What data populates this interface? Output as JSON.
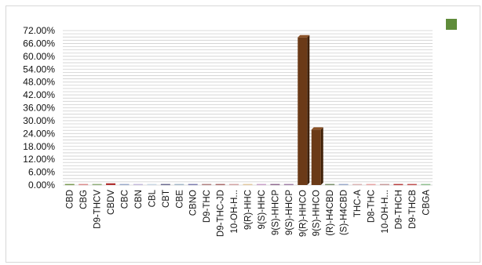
{
  "chart_data": {
    "type": "bar",
    "title": "",
    "xlabel": "",
    "ylabel": "",
    "ylim": [
      0,
      72
    ],
    "yticks": [
      "72.00%",
      "66.00%",
      "60.00%",
      "54.00%",
      "48.00%",
      "42.00%",
      "36.00%",
      "30.00%",
      "24.00%",
      "18.00%",
      "12.00%",
      "6.00%",
      "0.00%"
    ],
    "categories": [
      "CBD",
      "CBG",
      "D9-THCV",
      "CBDV",
      "CBC",
      "CBN",
      "CBL",
      "CBT",
      "CBE",
      "CBNO",
      "D9-THC",
      "D9-THC-JD",
      "10-OH-H...",
      "9(R)-HHC",
      "9(S)-HHC",
      "9(S)-HHCP",
      "9(S)-HHCP",
      "9(R)-HHCO",
      "9(S)-HHCO",
      "(R)-H4CBD",
      "(S)-H4CBD",
      "THC-A",
      "D8-THC",
      "10-OH-H...",
      "D9-THCH",
      "D9-THCB",
      "CBGA"
    ],
    "values": [
      0.5,
      0.5,
      0.5,
      0.8,
      0.5,
      0.5,
      0.5,
      0.5,
      0.5,
      0.5,
      0.5,
      0.5,
      0.5,
      0.5,
      0.5,
      0.5,
      0.5,
      68.8,
      25.8,
      0.5,
      0.5,
      0.5,
      0.5,
      0.5,
      0.5,
      0.5,
      0.5
    ],
    "bar_colors": [
      "#7a9a52",
      "#d98c8c",
      "#8fae7a",
      "#b03030",
      "#9aa9c9",
      "#c2b9d9",
      "#c9d6e3",
      "#6a6a8f",
      "#a3b5c7",
      "#7d7daf",
      "#b08080",
      "#a96b6b",
      "#d1a3a3",
      "#e0c7a0",
      "#c8a0c8",
      "#8f6a8f",
      "#9f7fa5",
      "#6b3a17",
      "#6b3a17",
      "#7a8f6a",
      "#9aa9c9",
      "#d9b3b3",
      "#e6a3a3",
      "#c79a9a",
      "#b84040",
      "#c05050",
      "#8fbf8f"
    ],
    "legend": {
      "color": "#5f8c3a",
      "placement": "top-right"
    },
    "grid": true
  }
}
